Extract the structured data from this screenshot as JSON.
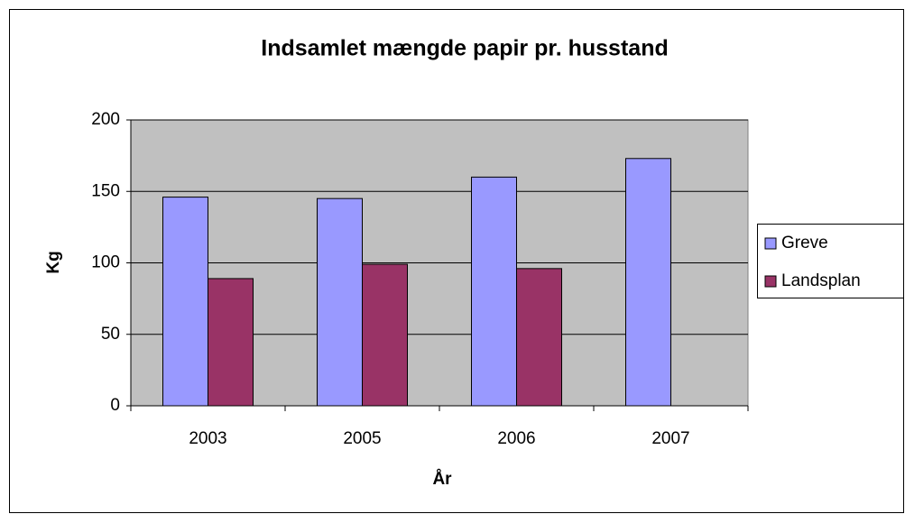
{
  "chart_data": {
    "type": "bar",
    "title": "Indsamlet mængde papir pr. husstand",
    "xlabel": "År",
    "ylabel": "Kg",
    "categories": [
      "2003",
      "2005",
      "2006",
      "2007"
    ],
    "series": [
      {
        "name": "Greve",
        "color": "#9999ff",
        "values": [
          146,
          145,
          160,
          173
        ]
      },
      {
        "name": "Landsplan",
        "color": "#993366",
        "values": [
          89,
          99,
          96,
          null
        ]
      }
    ],
    "ylim": [
      0,
      200
    ],
    "yticks": [
      0,
      50,
      100,
      150,
      200
    ],
    "grid": true,
    "legend": "right"
  }
}
